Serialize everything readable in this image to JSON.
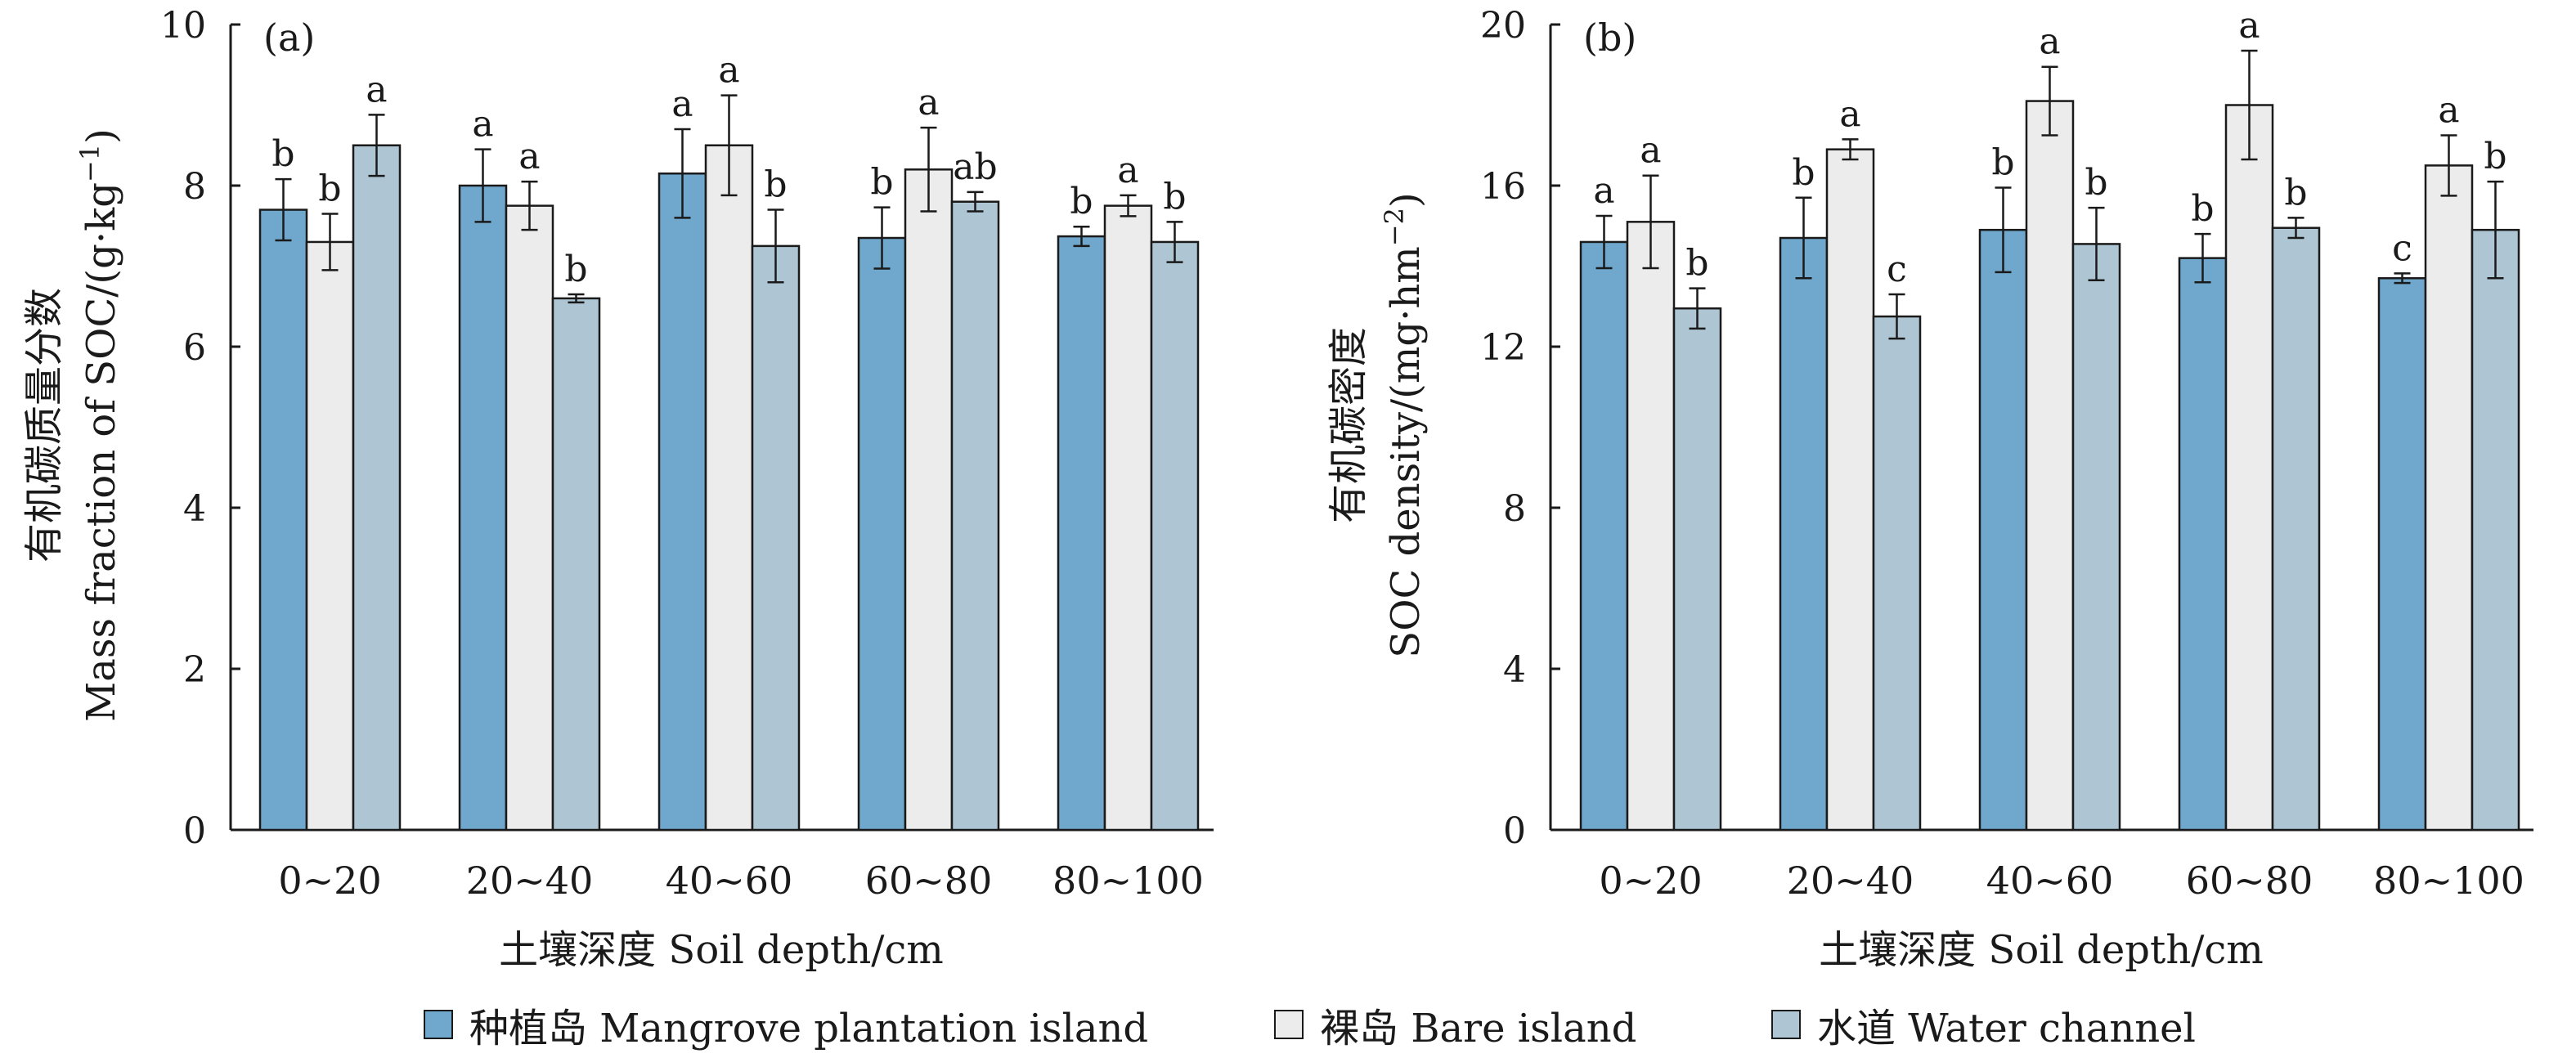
{
  "series": [
    {
      "name": "种植岛 Mangrove plantation island",
      "color": "#6fa8cc"
    },
    {
      "name": "裸岛 Bare island",
      "color": "#ececec"
    },
    {
      "name": "水道 Water channel",
      "color": "#aec6d3"
    }
  ],
  "chart_data": [
    {
      "type": "bar",
      "panel_label": "(a)",
      "categories": [
        "0~20",
        "20~40",
        "40~60",
        "60~80",
        "80~100"
      ],
      "xlabel": "土壤深度 Soil depth/cm",
      "ylabel_cn": "有机碳质量分数",
      "ylabel_en_base": "Mass fraction of SOC/(g·kg",
      "ylabel_en_sup": "−1",
      "ylabel_en_end": ")",
      "ylim": [
        0,
        10
      ],
      "yticks": [
        "0",
        "2",
        "4",
        "6",
        "8",
        "10"
      ],
      "series": [
        {
          "name": "种植岛 Mangrove plantation island",
          "values": [
            7.7,
            8.0,
            8.15,
            7.35,
            7.37
          ],
          "errors": [
            0.38,
            0.45,
            0.55,
            0.38,
            0.12
          ],
          "letters": [
            "b",
            "a",
            "a",
            "b",
            "b"
          ]
        },
        {
          "name": "裸岛 Bare island",
          "values": [
            7.3,
            7.75,
            8.5,
            8.2,
            7.75
          ],
          "errors": [
            0.35,
            0.3,
            0.62,
            0.52,
            0.13
          ],
          "letters": [
            "b",
            "a",
            "a",
            "a",
            "a"
          ]
        },
        {
          "name": "水道 Water channel",
          "values": [
            8.5,
            6.6,
            7.25,
            7.8,
            7.3
          ],
          "errors": [
            0.38,
            0.05,
            0.45,
            0.12,
            0.25
          ],
          "letters": [
            "a",
            "b",
            "b",
            "ab",
            "b"
          ]
        }
      ]
    },
    {
      "type": "bar",
      "panel_label": "(b)",
      "categories": [
        "0~20",
        "20~40",
        "40~60",
        "60~80",
        "80~100"
      ],
      "xlabel": "土壤深度 Soil depth/cm",
      "ylabel_cn": "有机碳密度",
      "ylabel_en_base": "SOC density/(mg·hm",
      "ylabel_en_sup": "−2",
      "ylabel_en_end": ")",
      "ylim": [
        0,
        20
      ],
      "yticks": [
        "0",
        "4",
        "8",
        "12",
        "16",
        "20"
      ],
      "series": [
        {
          "name": "种植岛 Mangrove plantation island",
          "values": [
            14.6,
            14.7,
            14.9,
            14.2,
            13.7
          ],
          "errors": [
            0.65,
            1.0,
            1.05,
            0.6,
            0.12
          ],
          "letters": [
            "a",
            "b",
            "b",
            "b",
            "c"
          ]
        },
        {
          "name": "裸岛 Bare island",
          "values": [
            15.1,
            16.9,
            18.1,
            18.0,
            16.5
          ],
          "errors": [
            1.15,
            0.25,
            0.85,
            1.35,
            0.75
          ],
          "letters": [
            "a",
            "a",
            "a",
            "a",
            "a"
          ]
        },
        {
          "name": "水道 Water channel",
          "values": [
            12.95,
            12.75,
            14.55,
            14.95,
            14.9
          ],
          "errors": [
            0.5,
            0.55,
            0.9,
            0.25,
            1.2
          ],
          "letters": [
            "b",
            "c",
            "b",
            "b",
            "b"
          ]
        }
      ]
    }
  ]
}
